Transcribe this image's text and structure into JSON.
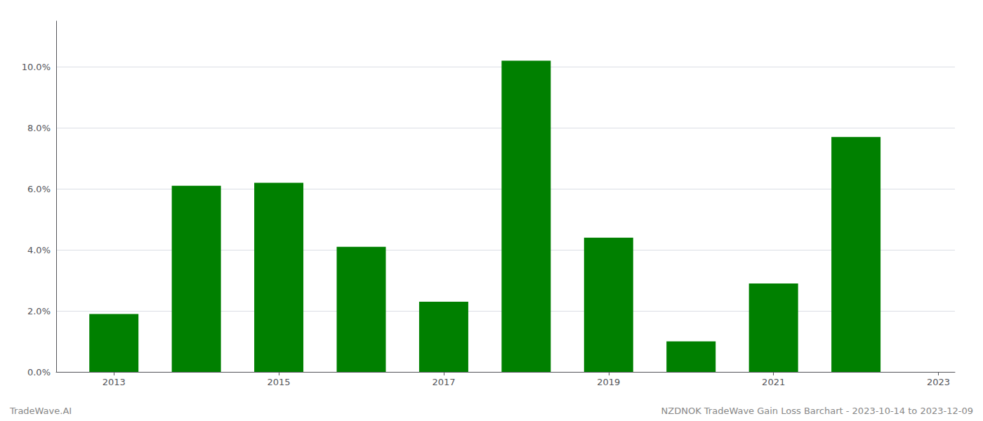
{
  "chart_data": {
    "type": "bar",
    "x": [
      2013,
      2014,
      2015,
      2016,
      2017,
      2018,
      2019,
      2020,
      2021,
      2022
    ],
    "values": [
      0.019,
      0.061,
      0.062,
      0.041,
      0.023,
      0.102,
      0.044,
      0.01,
      0.029,
      0.077
    ],
    "color": "#008000",
    "xlim": [
      2012.3,
      2023.2
    ],
    "xticks": [
      2013,
      2015,
      2017,
      2019,
      2021,
      2023
    ],
    "ylim": [
      0,
      0.115
    ],
    "yticks": [
      {
        "value": 0.0,
        "label": "0.0%"
      },
      {
        "value": 0.02,
        "label": "2.0%"
      },
      {
        "value": 0.04,
        "label": "4.0%"
      },
      {
        "value": 0.06,
        "label": "6.0%"
      },
      {
        "value": 0.08,
        "label": "8.0%"
      },
      {
        "value": 0.1,
        "label": "10.0%"
      }
    ],
    "grid": true,
    "annotations": [
      "TradeWave.AI",
      "NZDNOK TradeWave Gain Loss Barchart - 2023-10-14 to 2023-12-09"
    ]
  }
}
